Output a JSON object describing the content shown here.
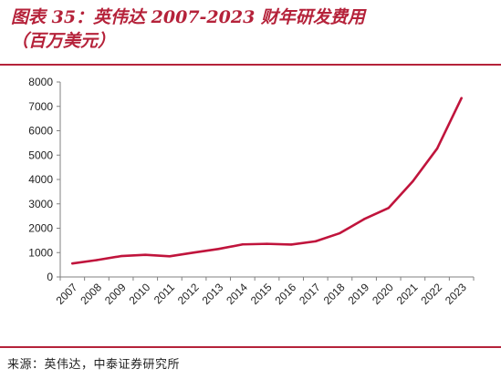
{
  "header": {
    "title_line1": "图表 35：英伟达 2007-2023 财年研发费用",
    "title_line2": "（百万美元）"
  },
  "footer": {
    "source": "来源：英伟达，中泰证券研究所"
  },
  "colors": {
    "accent": "#b5223a",
    "series": "#c0143c",
    "axis": "#808080",
    "text": "#222222"
  },
  "chart_data": {
    "type": "line",
    "title": "",
    "xlabel": "",
    "ylabel": "",
    "categories": [
      "2007",
      "2008",
      "2009",
      "2010",
      "2011",
      "2012",
      "2013",
      "2014",
      "2015",
      "2016",
      "2017",
      "2018",
      "2019",
      "2020",
      "2021",
      "2022",
      "2023"
    ],
    "series": [
      {
        "values": [
          554,
          692,
          856,
          909,
          848,
          1003,
          1147,
          1336,
          1360,
          1331,
          1463,
          1797,
          2376,
          2829,
          3924,
          5268,
          7339
        ]
      }
    ],
    "ylim": [
      0,
      8000
    ],
    "yticks": [
      0,
      1000,
      2000,
      3000,
      4000,
      5000,
      6000,
      7000,
      8000
    ],
    "ytick_labels": [
      "0",
      "1000",
      "2000",
      "3000",
      "4000",
      "5000",
      "6000",
      "7000",
      "8000"
    ],
    "grid": false,
    "legend": "none"
  }
}
